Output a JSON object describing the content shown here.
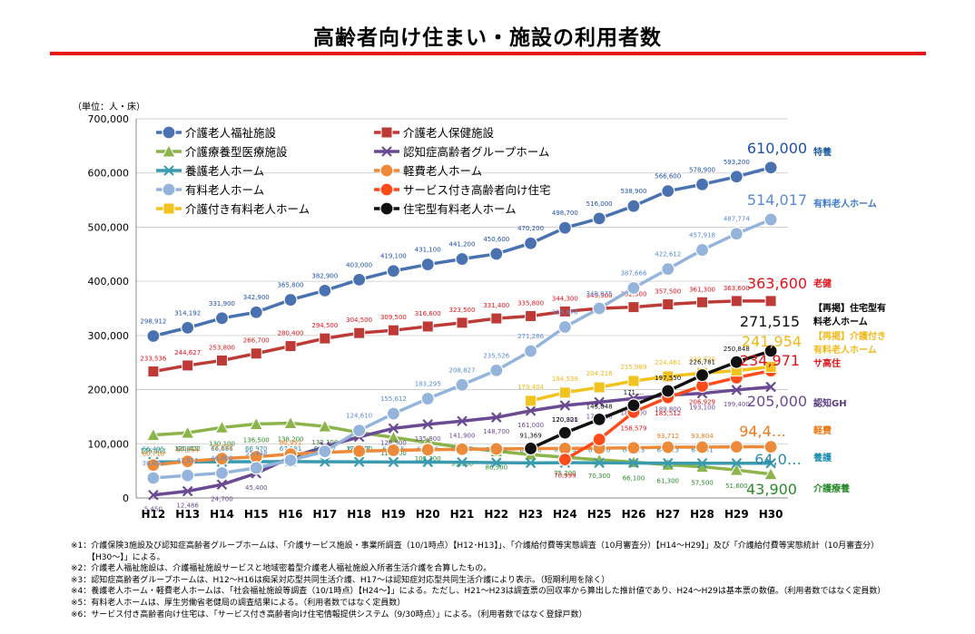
{
  "title": "高齢者向け住まい・施設の利用者数",
  "unit_label": "（単位：人・床）",
  "chart_data": {
    "type": "line",
    "categories": [
      "H12",
      "H13",
      "H14",
      "H15",
      "H16",
      "H17",
      "H18",
      "H19",
      "H20",
      "H21",
      "H22",
      "H23",
      "H24",
      "H25",
      "H26",
      "H27",
      "H28",
      "H29",
      "H30"
    ],
    "ylim": [
      0,
      700000
    ],
    "yticks": [
      "0",
      "100,000",
      "200,000",
      "300,000",
      "400,000",
      "500,000",
      "600,000",
      "700,000"
    ],
    "grid": true,
    "legend_position": "top-left",
    "series": [
      {
        "name": "介護老人福祉施設",
        "color": "#4a72b0",
        "marker": "circle",
        "values": [
          298912,
          314192,
          331900,
          342900,
          365800,
          382900,
          403000,
          419100,
          431100,
          441200,
          450600,
          470200,
          498700,
          516000,
          538900,
          566600,
          578900,
          593200,
          610000
        ],
        "labels": [
          "298,912",
          "314,192",
          "331,900",
          "342,900",
          "365,800",
          "382,900",
          "403,000",
          "419,100",
          "431,100",
          "441,200",
          "450,600",
          "470,200",
          "498,700",
          "516,000",
          "538,900",
          "566,600",
          "578,900",
          "593,200",
          ""
        ],
        "end_label": "610,000",
        "right_label": "特養",
        "label_color": "#1f4fa8",
        "right_color": "#1f5fa0"
      },
      {
        "name": "介護老人保健施設",
        "color": "#be3a36",
        "marker": "square",
        "values": [
          233536,
          244627,
          253800,
          266700,
          280400,
          294500,
          304500,
          309500,
          316600,
          323500,
          331400,
          335800,
          344300,
          349900,
          352300,
          357500,
          361300,
          363600,
          363600
        ],
        "labels": [
          "233,536",
          "244,627",
          "253,800",
          "266,700",
          "280,400",
          "294,500",
          "304,500",
          "309,500",
          "316,600",
          "323,500",
          "331,400",
          "335,800",
          "344,300",
          "349,900",
          "352,300",
          "357,500",
          "361,300",
          "363,600",
          ""
        ],
        "end_label": "363,600",
        "right_label": "老健",
        "label_color": "#e0121a",
        "right_color": "#e0121a"
      },
      {
        "name": "介護療養型医療施設",
        "color": "#8cb44a",
        "marker": "triangle",
        "values": [
          116111,
          120422,
          130100,
          136500,
          138200,
          132100,
          120900,
          111800,
          102300,
          93100,
          86500,
          80000,
          75200,
          70300,
          66100,
          61300,
          57500,
          51600,
          43900
        ],
        "labels": [
          "116,111",
          "120,422",
          "130,100",
          "136,500",
          "138,200",
          "132,100",
          "120,900",
          "111,800",
          "102,300",
          "93,100",
          "86,500",
          "",
          "75,200",
          "70,300",
          "66,100",
          "61,300",
          "57,500",
          "51,600",
          ""
        ],
        "end_label": "43,900",
        "right_label": "介護療養",
        "label_color": "#2a8a2a",
        "right_color": "#2a8a2a"
      },
      {
        "name": "認知症高齢者グループホーム",
        "color": "#6a4a92",
        "marker": "x",
        "values": [
          5450,
          12486,
          24700,
          45400,
          74800,
          94500,
          112800,
          128500,
          135800,
          141900,
          148700,
          161000,
          170800,
          176900,
          183600,
          189800,
          193100,
          199400,
          205000
        ],
        "labels": [
          "5,450",
          "12,486",
          "24,700",
          "45,400",
          "",
          "",
          "",
          "128,500",
          "135,800",
          "141,900",
          "148,700",
          "161,000",
          "170,800",
          "176,900",
          "183,600",
          "189,800",
          "193,100",
          "199,400",
          ""
        ],
        "end_label": "205,000",
        "right_label": "認知GH",
        "label_color": "#6a4a92",
        "right_color": "#5a3a82"
      },
      {
        "name": "養護老人ホーム",
        "color": "#3a9aae",
        "marker": "x",
        "values": [
          66495,
          66612,
          66686,
          66970,
          67181,
          66837,
          66667,
          66375,
          66239,
          65847,
          65186,
          64630,
          65113,
          64830,
          64443,
          64313,
          64091,
          64000,
          64000
        ],
        "labels": [
          "66,495",
          "66,612",
          "66,686",
          "66,970",
          "67,181",
          "66,837",
          "66,667",
          "66,375",
          "66,239",
          "65,847",
          "65,186",
          "64,630",
          "65,113",
          "64,830",
          "64,443",
          "64,313",
          "64,091",
          "",
          ""
        ],
        "end_label": "64,0…",
        "right_label": "養護",
        "label_color": "#2a8aaa",
        "right_color": "#1f8fb0"
      },
      {
        "name": "軽費老人ホーム",
        "color": "#ec8a3a",
        "marker": "circle",
        "values": [
          60718,
          67554,
          72532,
          76000,
          80951,
          84000,
          86500,
          88000,
          89000,
          90000,
          90500,
          91000,
          91500,
          92000,
          92500,
          93712,
          93804,
          94400,
          94400
        ],
        "labels": [
          "60,718",
          "67,554",
          "72,532",
          "",
          "80,951",
          "",
          "",
          "",
          "",
          "",
          "",
          "",
          "",
          "",
          "",
          "93,712",
          "93,804",
          "",
          ""
        ],
        "end_label": "94,4…",
        "right_label": "軽費",
        "label_color": "#ec7a1a",
        "right_color": "#ec7a1a"
      },
      {
        "name": "有料老人ホーム",
        "color": "#94b4dc",
        "marker": "circle",
        "values": [
          36855,
          41551,
          46000,
          55448,
          69500,
          86000,
          124610,
          155612,
          183295,
          208827,
          235526,
          271286,
          315678,
          349975,
          387666,
          422612,
          457918,
          487774,
          514017
        ],
        "labels": [
          "36,855",
          "41,551",
          "46,000",
          "55,448",
          "",
          "",
          "124,610",
          "155,612",
          "183,295",
          "208,827",
          "235,526",
          "271,286",
          "315,678",
          "349,975",
          "387,666",
          "422,612",
          "457,918",
          "487,774",
          ""
        ],
        "end_label": "514,017",
        "right_label": "有料老人ホーム",
        "label_color": "#5a8ad0",
        "right_color": "#3a7ac8"
      },
      {
        "name": "サービス付き高齢者向け住宅",
        "color": "#ff4a1a",
        "marker": "circle",
        "values": [
          null,
          null,
          null,
          null,
          null,
          null,
          null,
          null,
          null,
          null,
          null,
          null,
          70999,
          108000,
          158579,
          185512,
          206929,
          222000,
          234971
        ],
        "labels": [
          "",
          "",
          "",
          "",
          "",
          "",
          "",
          "",
          "",
          "",
          "",
          "",
          "70,999",
          "",
          "158,579",
          "185,512",
          "206,929",
          "",
          ""
        ],
        "end_label": "234,971",
        "right_label": "サ高住",
        "label_color": "#e0121a",
        "right_color": "#e0121a"
      },
      {
        "name": "介護付き有料老人ホーム",
        "color": "#f2c21e",
        "marker": "square",
        "values": [
          null,
          null,
          null,
          null,
          null,
          null,
          null,
          null,
          null,
          null,
          null,
          179404,
          194539,
          204216,
          215989,
          224461,
          230570,
          235000,
          241954
        ],
        "labels": [
          "",
          "",
          "",
          "",
          "",
          "",
          "",
          "",
          "",
          "",
          "",
          "179,404",
          "194,539",
          "204,216",
          "215,989",
          "224,461",
          "230,570",
          "",
          ""
        ],
        "end_label": "241,954",
        "right_label": "【再掲】介護付き有料老人ホーム",
        "label_color": "#f2b818",
        "right_color": "#f2b818"
      },
      {
        "name": "住宅型有料老人ホーム",
        "color": "#111111",
        "marker": "circle",
        "values": [
          null,
          null,
          null,
          null,
          null,
          null,
          null,
          null,
          null,
          null,
          null,
          91369,
          120321,
          145048,
          171000,
          197550,
          226781,
          250848,
          271515
        ],
        "labels": [
          "",
          "",
          "",
          "",
          "",
          "",
          "",
          "",
          "",
          "",
          "",
          "91,369",
          "120,321",
          "145,048",
          "171,…",
          "197,550",
          "226,781",
          "250,848",
          ""
        ],
        "end_label": "271,515",
        "right_label": "【再掲】住宅型有料老人ホーム",
        "label_color": "#111111",
        "right_color": "#000000"
      }
    ]
  },
  "notes": [
    "※1：介護保険3施設及び認知症高齢者グループホームは、「介護サービス施設・事業所調査（10/1時点）【H12･H13】」、「介護給付費等実態調査（10月審査分）【H14～H29】」及び「介護給付費等実態統計（10月審査分）",
    "【H30～】」による。",
    "※2：介護老人福祉施設は、介護福祉施設サービスと地域密着型介護老人福祉施設入所者生活介護を合算したもの。",
    "※3：認知症高齢者グループホームは、H12～H16は痴呆対応型共同生活介護、H17～は認知症対応型共同生活介護により表示。（短期利用を除く）",
    "※4：養護老人ホーム・軽費老人ホームは、「社会福祉施設等調査（10/1時点）【H24～】」による。ただし、H21～H23は調査票の回収率から算出した推計値であり、H24～H29は基本票の数値。（利用者数ではなく定員数）",
    "※5：有料老人ホームは、厚生労働省老健局の調査結果による。（利用者数ではなく定員数）",
    "※6：サービス付き高齢者向け住宅は、「サービス付き高齢者向け住宅情報提供システム（9/30時点）」による。（利用者数ではなく登録戸数）"
  ]
}
